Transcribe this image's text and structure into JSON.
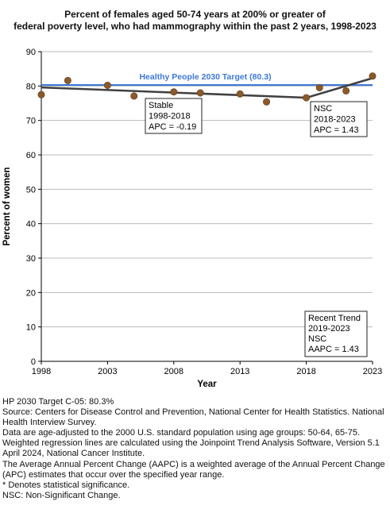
{
  "chart_data": {
    "type": "scatter",
    "title_lines": [
      "Percent of females aged 50-74 years at 200% or greater of",
      "federal poverty level, who had mammography within the past 2 years, 1998-2023"
    ],
    "xlabel": "Year",
    "ylabel": "Percent of women",
    "xlim": [
      1998,
      2023
    ],
    "ylim": [
      0,
      90
    ],
    "x_ticks": [
      1998,
      2003,
      2008,
      2013,
      2018,
      2023
    ],
    "y_ticks": [
      0,
      10,
      20,
      30,
      40,
      50,
      60,
      70,
      80,
      90
    ],
    "grid": "horizontal",
    "colors": {
      "points": "#8B5A2B",
      "trend": "#404040",
      "target": "#3C78D8",
      "target_text": "#3C78D8",
      "grid": "#bbbbbb"
    },
    "observed": {
      "x": [
        1998,
        2000,
        2003,
        2005,
        2008,
        2010,
        2013,
        2015,
        2018,
        2019,
        2021,
        2023
      ],
      "y": [
        77.5,
        81.6,
        80.2,
        77.1,
        78.3,
        78.0,
        77.7,
        75.4,
        76.6,
        79.5,
        78.6,
        82.9
      ]
    },
    "joinpoint_trend": {
      "x": [
        1998,
        2018,
        2023
      ],
      "y": [
        79.6,
        76.6,
        82.3
      ]
    },
    "target_line": {
      "value": 80.3,
      "label": "Healthy People 2030 Target (80.3)"
    },
    "annotations": [
      {
        "id": "stable",
        "lines": [
          "Stable",
          "1998-2018",
          "APC = -0.19"
        ]
      },
      {
        "id": "nsc",
        "lines": [
          "NSC",
          "2018-2023",
          "APC =  1.43"
        ]
      },
      {
        "id": "recent",
        "lines": [
          "Recent Trend",
          "2019-2023",
          "NSC",
          "AAPC =  1.43"
        ]
      }
    ]
  },
  "footnotes": [
    "HP 2030 Target C-05: 80.3%",
    "Source: Centers for Disease Control and Prevention, National Center for Health Statistics. National Health Interview Survey.",
    "Data are age-adjusted to the 2000 U.S. standard population using age groups: 50-64, 65-75.",
    "Weighted regression lines are calculated using the Joinpoint Trend Analysis Software, Version 5.1 April 2024, National Cancer Institute.",
    "The Average Annual Percent Change (AAPC) is a weighted average of the Annual Percent Change (APC) estimates that occur over the specified year range.",
    "* Denotes statistical significance.",
    "NSC: Non-Significant Change."
  ]
}
